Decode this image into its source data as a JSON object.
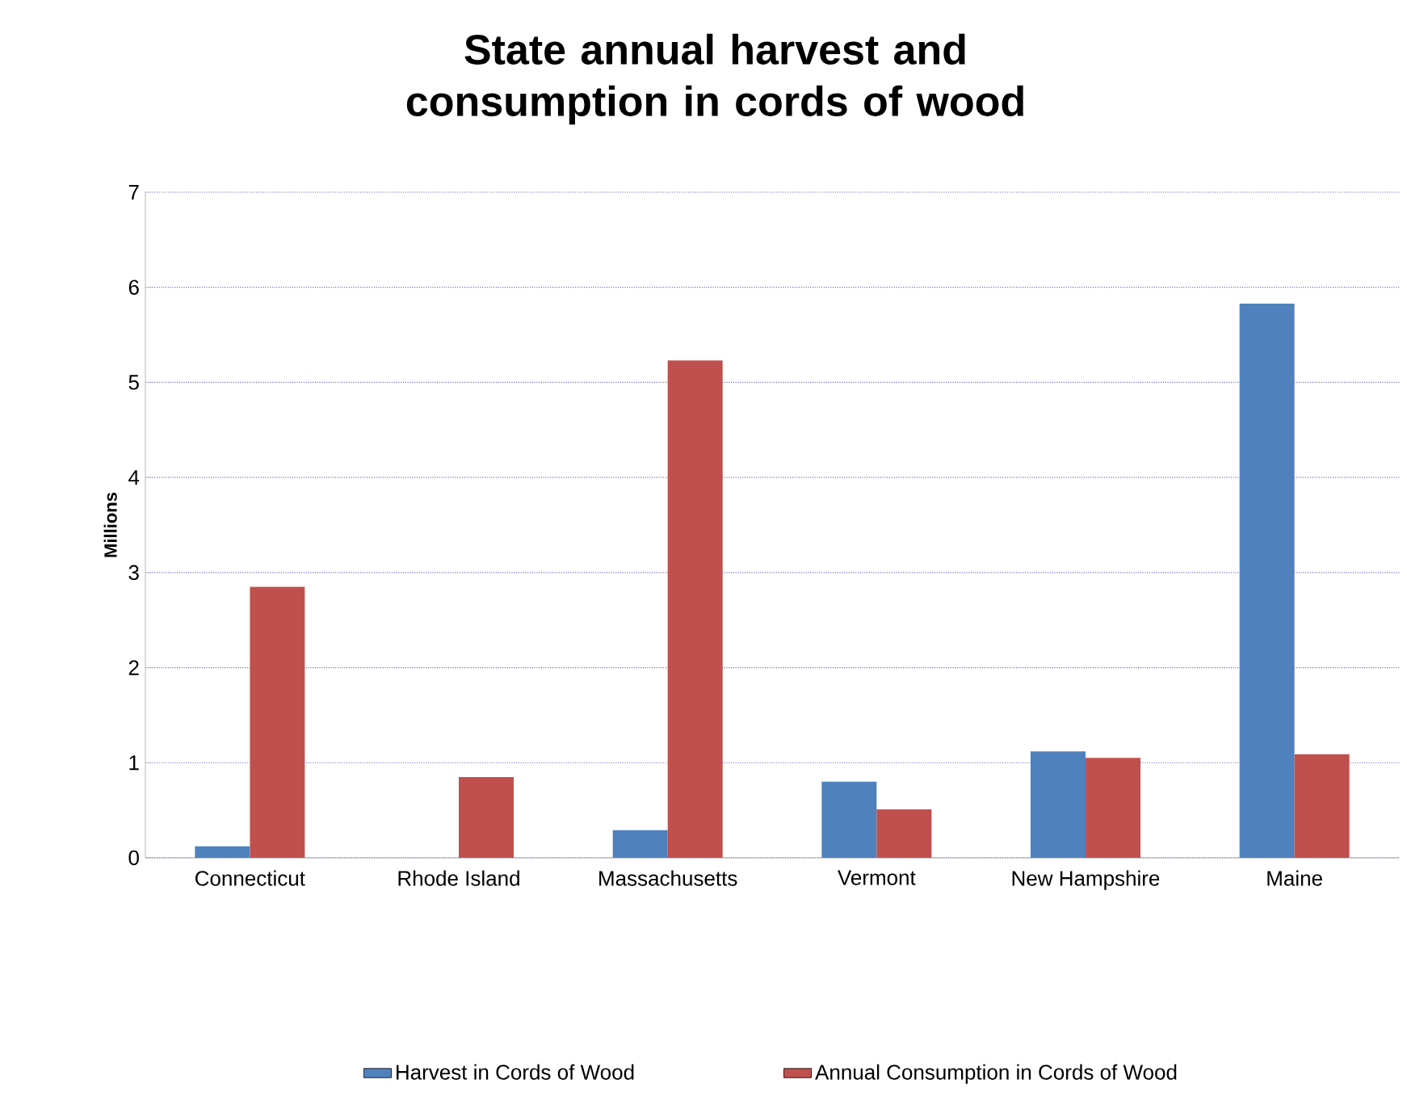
{
  "chart_data": {
    "type": "bar",
    "title": "State annual harvest and consumption in cords of wood",
    "ylabel": "Millions",
    "categories": [
      "Connecticut",
      "Rhode Island",
      "Massachusetts",
      "Vermont",
      "New Hampshire",
      "Maine"
    ],
    "series": [
      {
        "name": "Harvest in Cords of Wood",
        "color": "#4f81bd",
        "values": [
          0.12,
          0,
          0.29,
          0.8,
          1.12,
          5.83
        ]
      },
      {
        "name": "Annual Consumption in Cords of Wood",
        "color": "#c0504d",
        "values": [
          2.85,
          0.85,
          5.23,
          0.51,
          1.05,
          1.09
        ]
      }
    ],
    "ylim": [
      0,
      7
    ],
    "yticks": [
      0,
      1,
      2,
      3,
      4,
      5,
      6,
      7
    ],
    "grid": "y",
    "legend": "bottom"
  }
}
